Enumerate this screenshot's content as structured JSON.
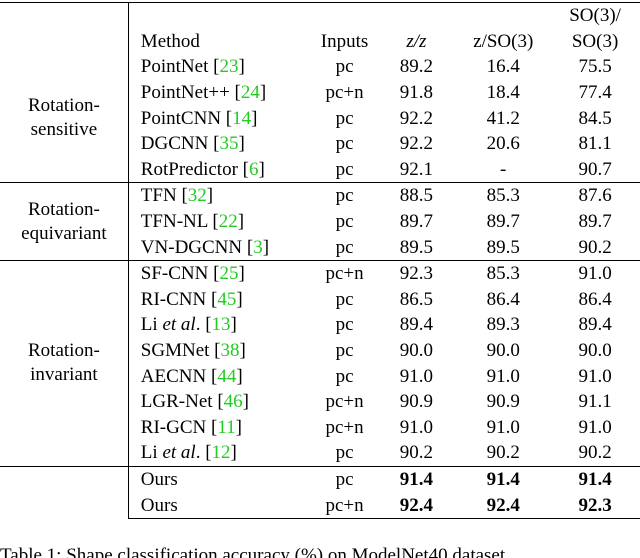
{
  "table": {
    "header": [
      "Method",
      "Inputs",
      "z/z",
      "z/SO(3)",
      [
        "SO(3)/",
        "SO(3)"
      ]
    ],
    "groups": [
      {
        "label": [
          "Rotation-",
          "sensitive"
        ],
        "rows": [
          {
            "method": "PointNet",
            "ref": "[23]",
            "cells": [
              "pc",
              "89.2",
              "16.4",
              "75.5"
            ]
          },
          {
            "method": "PointNet++",
            "ref": "[24]",
            "cells": [
              "pc+n",
              "91.8",
              "18.4",
              "77.4"
            ]
          },
          {
            "method": "PointCNN",
            "ref": "[14]",
            "cells": [
              "pc",
              "92.2",
              "41.2",
              "84.5"
            ]
          },
          {
            "method": "DGCNN",
            "ref": "[35]",
            "cells": [
              "pc",
              "92.2",
              "20.6",
              "81.1"
            ]
          },
          {
            "method": "RotPredictor",
            "ref": "[6]",
            "cells": [
              "pc",
              "92.1",
              "-",
              "90.7"
            ]
          }
        ]
      },
      {
        "label": [
          "Rotation-",
          "equivariant"
        ],
        "rows": [
          {
            "method": "TFN",
            "ref": "[32]",
            "cells": [
              "pc",
              "88.5",
              "85.3",
              "87.6"
            ]
          },
          {
            "method": "TFN-NL",
            "ref": "[22]",
            "cells": [
              "pc",
              "89.7",
              "89.7",
              "89.7"
            ]
          },
          {
            "method": "VN-DGCNN",
            "ref": "[3]",
            "cells": [
              "pc",
              "89.5",
              "89.5",
              "90.2"
            ]
          }
        ]
      },
      {
        "label": [
          "Rotation-",
          "invariant"
        ],
        "rows": [
          {
            "method": "SF-CNN",
            "ref": "[25]",
            "cells": [
              "pc+n",
              "92.3",
              "85.3",
              "91.0"
            ]
          },
          {
            "method": "RI-CNN",
            "ref": "[45]",
            "cells": [
              "pc",
              "86.5",
              "86.4",
              "86.4"
            ]
          },
          {
            "method": "Li",
            "method_em": "et al",
            "ref": ". [13]",
            "cells": [
              "pc",
              "89.4",
              "89.3",
              "89.4"
            ]
          },
          {
            "method": "SGMNet",
            "ref": "[38]",
            "cells": [
              "pc",
              "90.0",
              "90.0",
              "90.0"
            ]
          },
          {
            "method": "AECNN",
            "ref": "[44]",
            "cells": [
              "pc",
              "91.0",
              "91.0",
              "91.0"
            ]
          },
          {
            "method": "LGR-Net",
            "ref": "[46]",
            "cells": [
              "pc+n",
              "90.9",
              "90.9",
              "91.1"
            ]
          },
          {
            "method": "RI-GCN",
            "ref": "[11]",
            "cells": [
              "pc+n",
              "91.0",
              "91.0",
              "91.0"
            ]
          },
          {
            "method": "Li",
            "method_em": "et al",
            "ref": ". [12]",
            "cells": [
              "pc",
              "90.2",
              "90.2",
              "90.2"
            ]
          }
        ]
      },
      {
        "rows": [
          {
            "method": "Ours",
            "cells": [
              "pc",
              "91.4",
              "91.4",
              "91.4"
            ],
            "bold": true
          },
          {
            "method": "Ours",
            "cells": [
              "pc+n",
              "92.4",
              "92.4",
              "92.3"
            ],
            "bold": true
          }
        ]
      }
    ]
  },
  "caption": "Table 1: Shape classification accuracy (%) on ModelNet40 dataset"
}
